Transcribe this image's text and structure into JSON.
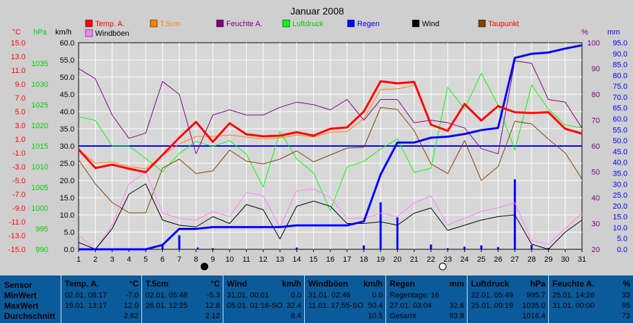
{
  "chart_data": {
    "type": "line",
    "title": "Januar 2008",
    "x": [
      1,
      2,
      3,
      4,
      5,
      6,
      7,
      8,
      9,
      10,
      11,
      12,
      13,
      14,
      15,
      16,
      17,
      18,
      19,
      20,
      21,
      22,
      23,
      24,
      25,
      26,
      27,
      28,
      29,
      30,
      31
    ],
    "axes": {
      "temp": {
        "label": "°C",
        "ylim": [
          -15,
          15
        ],
        "ticks": [
          "15.0",
          "13.0",
          "11.0",
          "9.0",
          "7.0",
          "5.0",
          "3.0",
          "1.0",
          "-1.0",
          "-3.0",
          "-5.0",
          "-7.0",
          "-9.0",
          "-11.0",
          "-13.0",
          "-15.0"
        ],
        "color": "#ff0000"
      },
      "pressure": {
        "label": "hPa",
        "ylim": [
          990,
          1040
        ],
        "ticks": [
          "1035",
          "1030",
          "1025",
          "1020",
          "1015",
          "1010",
          "1005",
          "1000",
          "995",
          "990"
        ],
        "color": "#00d000"
      },
      "wind": {
        "label": "km/h",
        "ylim": [
          0,
          60
        ],
        "ticks": [
          "60.0",
          "55.0",
          "50.0",
          "45.0",
          "40.0",
          "35.0",
          "30.0",
          "25.0",
          "20.0",
          "15.0",
          "10.0",
          "5.0",
          "0.0"
        ],
        "color": "#000000"
      },
      "humidity": {
        "label": "%",
        "ylim": [
          20,
          100
        ],
        "ticks": [
          "100",
          "90",
          "80",
          "70",
          "60",
          "50",
          "40",
          "30",
          "20"
        ],
        "color": "#800080"
      },
      "rain": {
        "label": "mm",
        "ylim": [
          0,
          95
        ],
        "ticks": [
          "95.0",
          "90.0",
          "85.0",
          "80.0",
          "75.0",
          "70.0",
          "65.0",
          "60.0",
          "55.0",
          "50.0",
          "45.0",
          "40.0",
          "35.0",
          "30.0",
          "25.0",
          "20.0",
          "15.0",
          "10.0",
          "5.0",
          "0.0"
        ],
        "color": "#0000ff"
      }
    },
    "legend": [
      "Temp. A.",
      "T.5cm",
      "Feuchte A.",
      "Luftdruck",
      "Regen",
      "Wind",
      "Taupunkt",
      "Windböen"
    ],
    "moon_markers": {
      "new": 8.5,
      "full": 22.7
    },
    "series": [
      {
        "name": "Temp. A.",
        "axis": "temp",
        "color": "#ff0000",
        "width": 3,
        "values": [
          -0.5,
          -3.2,
          -2.7,
          -3.3,
          -3.8,
          -1.3,
          1.2,
          3.5,
          0.6,
          3.3,
          1.7,
          1.4,
          1.5,
          2.0,
          1.5,
          2.5,
          2.7,
          5.0,
          9.4,
          9.1,
          9.3,
          3.1,
          2.2,
          6.1,
          3.7,
          5.8,
          4.9,
          4.8,
          4.9,
          2.5,
          1.8
        ]
      },
      {
        "name": "T.5cm",
        "axis": "temp",
        "color": "#ff8000",
        "width": 1,
        "values": [
          -0.5,
          -2.5,
          -2.3,
          -3.0,
          -3.3,
          -1.4,
          0.3,
          1.4,
          1.4,
          1.6,
          1.3,
          1.0,
          1.2,
          1.6,
          1.3,
          2.0,
          2.1,
          4.0,
          8.2,
          8.3,
          8.8,
          null,
          null,
          null,
          null,
          null,
          null,
          null,
          null,
          null,
          null
        ]
      },
      {
        "name": "Taupunkt",
        "axis": "temp",
        "color": "#804000",
        "width": 1,
        "values": [
          -2.0,
          -5.5,
          -8.2,
          -9.7,
          -9.7,
          -3.2,
          -1.9,
          -4.0,
          -3.6,
          -0.6,
          -2.2,
          -2.6,
          -1.9,
          -0.7,
          -2.3,
          -1.3,
          -0.3,
          -0.2,
          5.6,
          5.3,
          2.2,
          -2.6,
          -4.0,
          0.8,
          -5.0,
          -3.0,
          3.6,
          3.2,
          1.0,
          -1.0,
          -4.8
        ]
      },
      {
        "name": "Feuchte A.",
        "axis": "humidity",
        "color": "#800080",
        "width": 1,
        "values": [
          90,
          86,
          72,
          63,
          65,
          85,
          80,
          57,
          72,
          74,
          72,
          72,
          75,
          77,
          76,
          74,
          78,
          70,
          78,
          78,
          69,
          70,
          69,
          67,
          59,
          57,
          93,
          92,
          78,
          77,
          67
        ]
      },
      {
        "name": "Luftdruck",
        "axis": "pressure",
        "color": "#00ff00",
        "width": 1,
        "values": [
          1022.1,
          1021.2,
          1015.0,
          1015.0,
          1012.0,
          1008.8,
          1013.2,
          1016.1,
          1014.9,
          1016.3,
          1013.0,
          1005.1,
          1018.5,
          1011.9,
          1008.5,
          999.4,
          1009.9,
          1011.3,
          1014.3,
          1016.7,
          1008.6,
          1009.6,
          1029.2,
          1024.0,
          1032.6,
          1024.9,
          1014.0,
          1029.8,
          1023.9,
          1020.1,
          1019.4
        ]
      },
      {
        "name": "Wind",
        "axis": "wind",
        "color": "#000000",
        "width": 1,
        "values": [
          2.0,
          0.0,
          6.0,
          16.0,
          19.0,
          8.5,
          7.0,
          6.5,
          9.5,
          7.5,
          13.0,
          11.5,
          3.0,
          12.5,
          14.0,
          12.5,
          7.5,
          7.5,
          8.0,
          7.0,
          10.5,
          12.0,
          5.5,
          7.0,
          8.5,
          9.5,
          10.0,
          1.5,
          0.0,
          5.0,
          8.5
        ]
      },
      {
        "name": "Windböen",
        "axis": "wind",
        "color": "#ff80ff",
        "width": 1,
        "values": [
          4.0,
          0.0,
          7.0,
          19.0,
          22.5,
          10.5,
          9.0,
          8.5,
          11.0,
          9.5,
          16.5,
          15.5,
          6.5,
          17.0,
          17.5,
          15.0,
          9.0,
          9.0,
          10.5,
          9.5,
          13.5,
          15.5,
          7.0,
          9.0,
          11.0,
          12.0,
          13.5,
          2.5,
          1.5,
          6.0,
          10.5
        ]
      },
      {
        "name": "Regen",
        "axis": "rain",
        "color": "#0000ff",
        "width": 3,
        "step": true,
        "values": [
          0,
          0,
          0,
          0,
          0,
          2.0,
          9.4,
          9.4,
          10.2,
          10.2,
          10.2,
          10.2,
          10.2,
          11.0,
          11.0,
          11.0,
          11.0,
          12.8,
          34.4,
          49.1,
          49.1,
          51.3,
          51.8,
          53.0,
          54.8,
          55.8,
          88.0,
          89.9,
          90.5,
          92.3,
          93.8
        ]
      }
    ],
    "rain_bars": {
      "axis": "rain",
      "x": [
        6,
        7,
        8.1,
        9,
        14,
        18,
        19,
        20,
        22,
        23,
        24,
        25,
        26,
        27,
        28,
        29
      ],
      "values": [
        2.0,
        6.5,
        0.8,
        0.5,
        0.8,
        1.8,
        21.6,
        14.7,
        2.2,
        0.5,
        1.2,
        1.8,
        1.0,
        32.2,
        2.0,
        0.6
      ]
    },
    "reference_line": {
      "axis": "temp",
      "value": 0.0,
      "color": "#0000ff"
    }
  },
  "summary": {
    "row_labels": [
      "Sensor",
      "MinWert",
      "MaxWert",
      "Durchschnitt"
    ],
    "columns": [
      {
        "title": "Temp. A.",
        "unit": "°C",
        "min_date": "02.01. 08:17",
        "min": "-7.0",
        "max_date": "19.01. 13:17",
        "max": "12.0",
        "avg": "2.62"
      },
      {
        "title": "T.5cm",
        "unit": "°C",
        "min_date": "02.01. 05:48",
        "min": "-5.3",
        "max_date": "26.01. 12:25",
        "max": "12.8",
        "avg": "2.12"
      },
      {
        "title": "Wind",
        "unit": "km/h",
        "min_date": "31.01. 00:01",
        "min": "0.0",
        "max_date": "05.01. 01:16-SO",
        "max": "32.4",
        "avg": "8.4"
      },
      {
        "title": "Windböen",
        "unit": "km/h",
        "min_date": "31.01. 02:46",
        "min": "0.0",
        "max_date": "11.01. 17:55-SO",
        "max": "50.4",
        "avg": "10.5"
      },
      {
        "title": "Regen",
        "unit": "mm",
        "min_date": "Regentage: 16",
        "min": "",
        "max_date": "27.01. 03:04",
        "max": "32.6",
        "avg_label": "Gesamt",
        "avg": "93.8"
      },
      {
        "title": "Luftdruck",
        "unit": "hPa",
        "min_date": "22.01. 05:49",
        "min": "995.7",
        "max_date": "25.01. 09:19",
        "max": "1035.0",
        "avg": "1016.4"
      },
      {
        "title": "Feuchte A.",
        "unit": "%",
        "min_date": "25.01. 14:26",
        "min": "33",
        "max_date": "31.01. 00:00",
        "max": "95",
        "avg": "73"
      }
    ]
  }
}
